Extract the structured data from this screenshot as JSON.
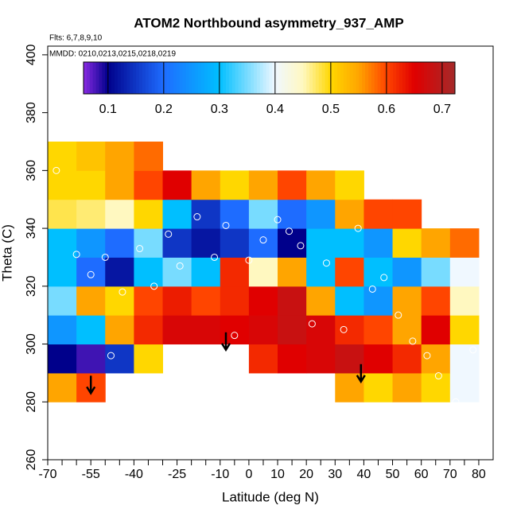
{
  "chart_data": {
    "type": "heatmap",
    "title": "ATOM2 Northbound asymmetry_937_AMP",
    "subtitle": "Flts: 6,7,8,9,10",
    "annotation": "MMDD: 0210,0213,0215,0218,0219",
    "xlabel": "Latitude (deg N)",
    "ylabel": "Theta (C)",
    "xlim": [
      -70,
      85
    ],
    "ylim": [
      260,
      403
    ],
    "xticks": [
      -70,
      -55,
      -40,
      -25,
      -10,
      0,
      10,
      20,
      30,
      40,
      50,
      60,
      70,
      80
    ],
    "xminor_ticks": [
      -65,
      -60,
      -50,
      -45,
      -35,
      -30,
      -20,
      -15,
      -5,
      5,
      15,
      25,
      35,
      45,
      55,
      65,
      75
    ],
    "yticks": [
      260,
      280,
      300,
      320,
      340,
      360,
      380,
      400
    ],
    "x_edges": [
      -70,
      -60,
      -50,
      -40,
      -30,
      -20,
      -10,
      0,
      10,
      20,
      30,
      40,
      50,
      60,
      70,
      80
    ],
    "y_edges": [
      280,
      290,
      300,
      310,
      320,
      330,
      340,
      350,
      360,
      370
    ],
    "values": [
      [
        0.55,
        0.6,
        null,
        null,
        null,
        null,
        null,
        null,
        null,
        null,
        0.55,
        0.5,
        0.55,
        0.5,
        0.4
      ],
      [
        0.1,
        0.08,
        0.15,
        0.5,
        null,
        null,
        null,
        0.62,
        0.65,
        0.66,
        0.68,
        0.65,
        0.62,
        0.55,
        0.4
      ],
      [
        0.25,
        0.3,
        0.55,
        0.62,
        0.66,
        0.66,
        0.65,
        0.66,
        0.68,
        0.66,
        0.62,
        0.6,
        0.55,
        0.65,
        0.5
      ],
      [
        0.35,
        0.55,
        0.5,
        0.6,
        0.63,
        0.6,
        0.62,
        0.65,
        0.68,
        0.55,
        0.3,
        0.25,
        0.55,
        0.6,
        0.45
      ],
      [
        0.3,
        0.2,
        0.12,
        0.3,
        0.35,
        0.3,
        0.62,
        0.45,
        0.55,
        0.3,
        0.6,
        0.3,
        0.25,
        0.35,
        0.4
      ],
      [
        0.3,
        0.25,
        0.2,
        0.35,
        0.15,
        0.12,
        0.15,
        0.2,
        0.1,
        0.3,
        0.3,
        0.25,
        0.5,
        0.55,
        0.58
      ],
      [
        0.48,
        0.47,
        0.45,
        0.5,
        0.3,
        0.15,
        0.2,
        0.35,
        0.2,
        0.25,
        0.55,
        0.6,
        0.6,
        null,
        null
      ],
      [
        0.5,
        0.5,
        0.55,
        0.6,
        0.65,
        0.55,
        0.5,
        0.55,
        0.6,
        0.55,
        0.5,
        null,
        null,
        null,
        null
      ],
      [
        0.5,
        0.52,
        0.55,
        0.58,
        null,
        null,
        null,
        null,
        null,
        null,
        null,
        null,
        null,
        null,
        null
      ]
    ],
    "colorbar": {
      "lim": [
        0.056,
        0.723
      ],
      "ticks": [
        0.1,
        0.2,
        0.3,
        0.4,
        0.5,
        0.6,
        0.7
      ],
      "stops": [
        [
          0.056,
          "#8a2be2"
        ],
        [
          0.1,
          "#00008b"
        ],
        [
          0.2,
          "#1e6cff"
        ],
        [
          0.3,
          "#00bfff"
        ],
        [
          0.4,
          "#f0f8ff"
        ],
        [
          0.45,
          "#fff8c0"
        ],
        [
          0.5,
          "#ffd700"
        ],
        [
          0.55,
          "#ffa500"
        ],
        [
          0.6,
          "#ff4500"
        ],
        [
          0.65,
          "#e00000"
        ],
        [
          0.723,
          "#a52a2a"
        ]
      ]
    },
    "points": {
      "x": [
        -67,
        -60,
        -55,
        -50,
        -48,
        -44,
        -38,
        -33,
        -28,
        -24,
        -18,
        -12,
        -8,
        -5,
        0,
        5,
        10,
        14,
        18,
        22,
        27,
        33,
        38,
        43,
        47,
        52,
        57,
        62,
        66,
        72,
        78
      ],
      "y": [
        360,
        331,
        324,
        330,
        296,
        318,
        333,
        320,
        338,
        327,
        344,
        330,
        341,
        303,
        329,
        336,
        343,
        339,
        334,
        307,
        328,
        305,
        340,
        319,
        323,
        310,
        301,
        296,
        289,
        280,
        298
      ],
      "color": "#ffffff"
    },
    "arrows": {
      "x": [
        -55,
        -8,
        39
      ],
      "y": [
        283,
        298,
        287
      ],
      "color": "#000000"
    }
  }
}
